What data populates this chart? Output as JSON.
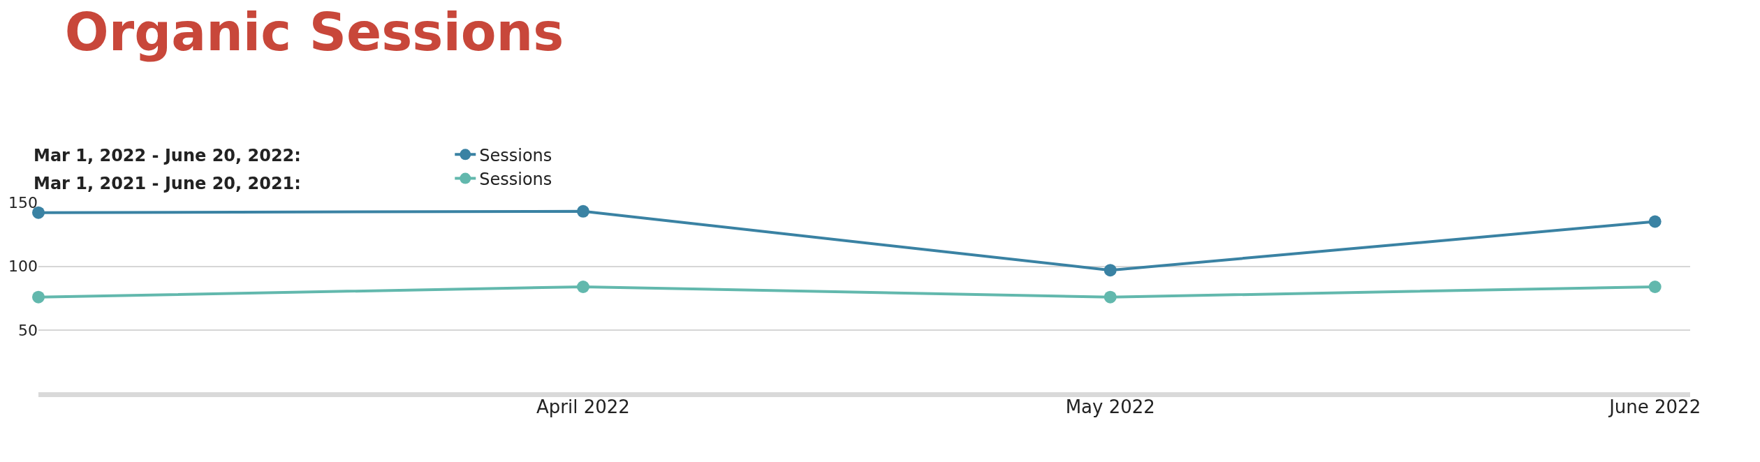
{
  "chart_data": {
    "type": "line",
    "title": "Organic Sessions",
    "x": [
      "2022-03-01",
      "2022-04-01",
      "2022-05-01",
      "2022-06-01"
    ],
    "series": [
      {
        "name": "Sessions",
        "color": "#3a82a3",
        "values": [
          142,
          143,
          97,
          135
        ]
      },
      {
        "name": "Sessions",
        "color": "#62b8ad",
        "values": [
          76,
          84,
          76,
          84
        ]
      }
    ],
    "annotations": [
      "Mar 1, 2022 - June 20, 2022:",
      "Mar 1, 2021 - June 20, 2021:"
    ],
    "xlim": [
      "2022-03-01",
      "2022-06-03"
    ],
    "xticks": [
      {
        "value": "2022-04-01",
        "label": "April 2022"
      },
      {
        "value": "2022-05-01",
        "label": "May 2022"
      },
      {
        "value": "2022-06-01",
        "label": "June 2022"
      }
    ],
    "ylim": [
      0,
      150
    ],
    "yticks": [
      50,
      100,
      150
    ],
    "grid": "y",
    "legend": "top left",
    "marker": "circle",
    "line_style": "solid"
  }
}
